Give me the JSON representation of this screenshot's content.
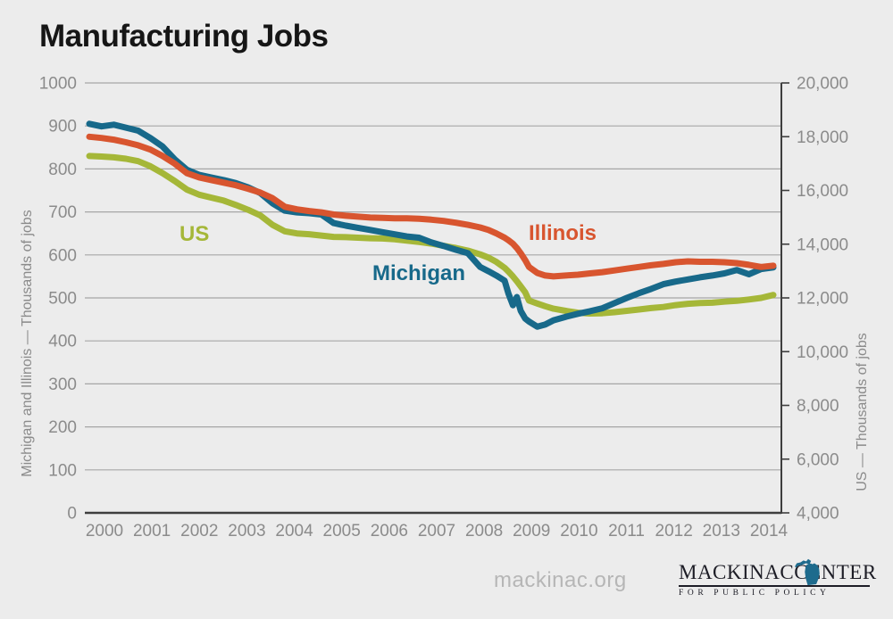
{
  "title": "Manufacturing Jobs",
  "footer": {
    "site_url": "mackinac.org",
    "logo": {
      "name_left": "MACKINAC",
      "name_right": "CENTER",
      "tagline": "FOR PUBLIC POLICY",
      "map_icon": "michigan-map",
      "map_color": "#1e6b8d",
      "text_color": "#1d1d26"
    }
  },
  "colors": {
    "background": "#ececec",
    "grid": "#a6a6a6",
    "axis": "#3e3e3e",
    "tick_text": "#8b8b8b",
    "title_text": "#161616"
  },
  "chart_data": {
    "type": "line",
    "title": "Manufacturing Jobs",
    "grid": "horizontal",
    "legend_position": "inline-annotations",
    "x_tick_labels": [
      "2000",
      "2001",
      "2002",
      "2003",
      "2004",
      "2005",
      "2006",
      "2007",
      "2008",
      "2009",
      "2010",
      "2011",
      "2012",
      "2013",
      "2014"
    ],
    "x": [
      2000,
      2000.25,
      2000.5,
      2000.75,
      2001,
      2001.25,
      2001.5,
      2001.75,
      2002,
      2002.25,
      2002.5,
      2002.75,
      2003,
      2003.25,
      2003.5,
      2003.75,
      2004,
      2004.25,
      2004.5,
      2004.75,
      2005,
      2005.25,
      2005.5,
      2005.75,
      2006,
      2006.25,
      2006.5,
      2006.75,
      2007,
      2007.25,
      2007.5,
      2007.75,
      2008,
      2008.17,
      2008.33,
      2008.5,
      2008.58,
      2008.67,
      2008.75,
      2008.83,
      2008.92,
      2009,
      2009.17,
      2009.33,
      2009.5,
      2009.75,
      2010,
      2010.25,
      2010.5,
      2010.75,
      2011,
      2011.25,
      2011.5,
      2011.75,
      2012,
      2012.25,
      2012.5,
      2012.75,
      2013,
      2013.25,
      2013.5,
      2013.75,
      2014
    ],
    "left_axis": {
      "title": "Michigan and Illinois — Thousands of jobs",
      "min": 0,
      "max": 1000,
      "tick_step": 100,
      "tick_values": [
        1000,
        900,
        800,
        700,
        600,
        500,
        400,
        300,
        200,
        100,
        0
      ],
      "tick_labels": [
        "1000",
        "900",
        "800",
        "700",
        "600",
        "500",
        "400",
        "300",
        "200",
        "100",
        "0"
      ]
    },
    "right_axis": {
      "title": "US — Thousands of jobs",
      "min": 4000,
      "max": 20000,
      "tick_step": 2000,
      "tick_values": [
        20000,
        18000,
        16000,
        14000,
        12000,
        10000,
        8000,
        6000,
        4000
      ],
      "tick_labels": [
        "20,000",
        "18,000",
        "16,000",
        "14,000",
        "12,000",
        "10,000",
        "8,000",
        "6,000",
        "4,000"
      ]
    },
    "series": [
      {
        "name": "US",
        "axis": "right",
        "color": "#a5b738",
        "values": [
          17280,
          17260,
          17230,
          17180,
          17090,
          16900,
          16640,
          16350,
          16030,
          15840,
          15730,
          15620,
          15460,
          15280,
          15070,
          14720,
          14480,
          14400,
          14370,
          14320,
          14270,
          14260,
          14240,
          14220,
          14210,
          14180,
          14130,
          14080,
          14020,
          13940,
          13860,
          13760,
          13620,
          13500,
          13340,
          13120,
          12980,
          12800,
          12620,
          12430,
          12210,
          11900,
          11790,
          11690,
          11600,
          11520,
          11450,
          11420,
          11430,
          11470,
          11520,
          11570,
          11620,
          11660,
          11730,
          11780,
          11810,
          11820,
          11860,
          11890,
          11940,
          12000,
          12110
        ]
      },
      {
        "name": "Michigan",
        "axis": "left",
        "color": "#17698a",
        "values": [
          905,
          899,
          903,
          896,
          889,
          872,
          852,
          822,
          798,
          786,
          780,
          774,
          767,
          757,
          744,
          720,
          703,
          699,
          697,
          694,
          674,
          668,
          663,
          658,
          653,
          648,
          643,
          640,
          629,
          621,
          612,
          604,
          572,
          562,
          552,
          540,
          510,
          483,
          502,
          470,
          452,
          445,
          433,
          438,
          448,
          456,
          463,
          469,
          476,
          488,
          500,
          511,
          521,
          532,
          538,
          543,
          548,
          552,
          557,
          565,
          555,
          567,
          571
        ]
      },
      {
        "name": "Illinois",
        "axis": "left",
        "color": "#d8552f",
        "values": [
          875,
          872,
          868,
          862,
          855,
          845,
          830,
          812,
          790,
          780,
          774,
          768,
          762,
          754,
          745,
          732,
          712,
          706,
          702,
          699,
          694,
          691,
          689,
          687,
          686,
          685,
          685,
          684,
          682,
          679,
          675,
          670,
          664,
          658,
          650,
          640,
          634,
          626,
          616,
          604,
          588,
          572,
          558,
          552,
          550,
          552,
          554,
          557,
          560,
          564,
          568,
          572,
          576,
          579,
          583,
          585,
          584,
          584,
          583,
          581,
          577,
          572,
          575
        ]
      }
    ]
  }
}
